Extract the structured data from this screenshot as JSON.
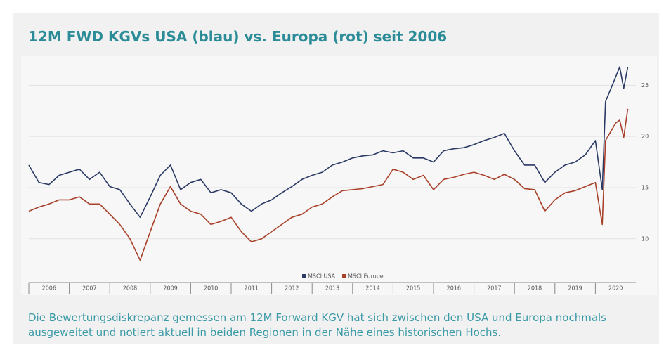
{
  "chart_data": {
    "type": "line",
    "title": "12M FWD KGVs USA (blau) vs. Europa (rot) seit 2006",
    "caption": "Die Bewertungsdiskrepanz gemessen am 12M Forward KGV hat sich zwischen den USA und Europa nochmals ausgeweitet und notiert aktuell in beiden Regionen in der Nähe eines historischen Hochs.",
    "x": [
      2006.0,
      2006.25,
      2006.5,
      2006.75,
      2007.0,
      2007.25,
      2007.5,
      2007.75,
      2008.0,
      2008.25,
      2008.5,
      2008.75,
      2009.0,
      2009.25,
      2009.5,
      2009.75,
      2010.0,
      2010.25,
      2010.5,
      2010.75,
      2011.0,
      2011.25,
      2011.5,
      2011.75,
      2012.0,
      2012.25,
      2012.5,
      2012.75,
      2013.0,
      2013.25,
      2013.5,
      2013.75,
      2014.0,
      2014.25,
      2014.5,
      2014.75,
      2015.0,
      2015.25,
      2015.5,
      2015.75,
      2016.0,
      2016.25,
      2016.5,
      2016.75,
      2017.0,
      2017.25,
      2017.5,
      2017.75,
      2018.0,
      2018.25,
      2018.5,
      2018.75,
      2019.0,
      2019.25,
      2019.5,
      2019.75,
      2020.0,
      2020.17,
      2020.25,
      2020.5,
      2020.6,
      2020.7,
      2020.8
    ],
    "series": [
      {
        "name": "MSCI USA",
        "color": "#2b3a64",
        "values": [
          17.2,
          15.5,
          15.3,
          16.2,
          16.5,
          16.8,
          15.8,
          16.5,
          15.1,
          14.8,
          13.4,
          12.1,
          14.1,
          16.2,
          17.2,
          14.8,
          15.5,
          15.8,
          14.5,
          14.8,
          14.5,
          13.4,
          12.7,
          13.4,
          13.8,
          14.5,
          15.1,
          15.8,
          16.2,
          16.5,
          17.2,
          17.5,
          17.9,
          18.1,
          18.2,
          18.6,
          18.4,
          18.6,
          17.9,
          17.9,
          17.5,
          18.6,
          18.8,
          18.9,
          19.2,
          19.6,
          19.9,
          20.3,
          18.6,
          17.2,
          17.2,
          15.5,
          16.5,
          17.2,
          17.5,
          18.2,
          19.6,
          14.8,
          23.4,
          25.8,
          26.8,
          24.7,
          26.8
        ]
      },
      {
        "name": "MSCI Europe",
        "color": "#a8402a",
        "values": [
          12.7,
          13.1,
          13.4,
          13.8,
          13.8,
          14.1,
          13.4,
          13.4,
          12.4,
          11.4,
          10.0,
          7.9,
          10.7,
          13.4,
          15.1,
          13.4,
          12.7,
          12.4,
          11.4,
          11.7,
          12.1,
          10.7,
          9.7,
          10.0,
          10.7,
          11.4,
          12.1,
          12.4,
          13.1,
          13.4,
          14.1,
          14.7,
          14.8,
          14.9,
          15.1,
          15.3,
          16.8,
          16.5,
          15.8,
          16.2,
          14.8,
          15.8,
          16.0,
          16.3,
          16.5,
          16.2,
          15.8,
          16.3,
          15.8,
          14.9,
          14.8,
          12.7,
          13.8,
          14.5,
          14.7,
          15.1,
          15.5,
          11.4,
          19.6,
          21.3,
          21.6,
          19.9,
          22.7
        ]
      }
    ],
    "xlim": [
      2006,
      2021
    ],
    "xticks": [
      2006,
      2007,
      2008,
      2009,
      2010,
      2011,
      2012,
      2013,
      2014,
      2015,
      2016,
      2017,
      2018,
      2019,
      2020
    ],
    "ylim": [
      6,
      27.5
    ],
    "yticks": [
      10,
      15,
      20,
      25
    ],
    "grid": true
  }
}
